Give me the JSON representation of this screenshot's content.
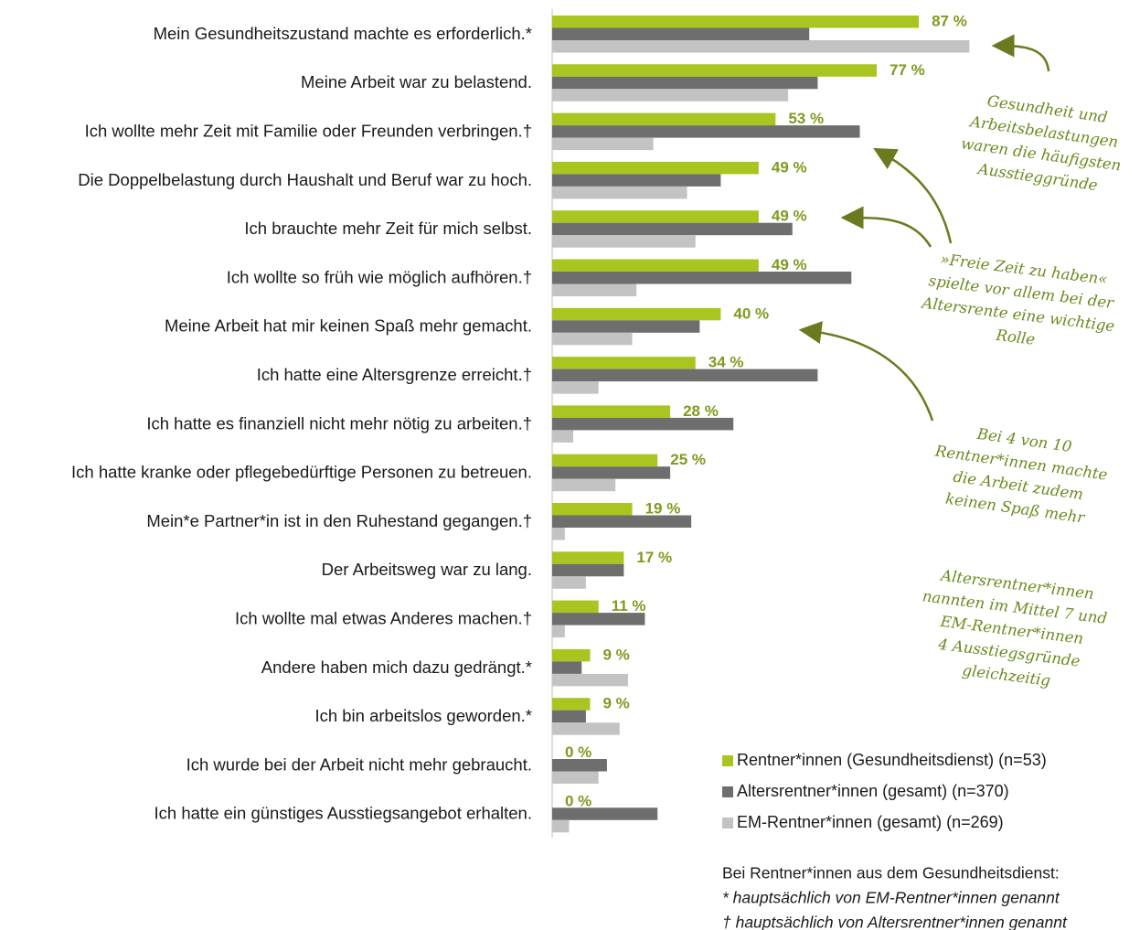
{
  "chart_data": {
    "type": "bar",
    "orientation": "horizontal",
    "categories": [
      "Mein Gesundheitszustand machte es erforderlich.*",
      "Meine Arbeit war zu belastend.",
      "Ich wollte mehr Zeit mit Familie oder Freunden verbringen.†",
      "Die Doppelbelastung durch Haushalt und Beruf war zu hoch.",
      "Ich brauchte mehr Zeit für mich selbst.",
      "Ich wollte so früh wie möglich aufhören.†",
      "Meine Arbeit hat mir keinen Spaß mehr gemacht.",
      "Ich hatte eine Altersgrenze erreicht.†",
      "Ich hatte es finanziell nicht mehr nötig zu arbeiten.†",
      "Ich hatte kranke oder pflegebedürftige Personen zu betreuen.",
      "Mein*e Partner*in ist in den Ruhestand gegangen.†",
      "Der Arbeitsweg war zu lang.",
      "Ich wollte mal etwas Anderes machen.†",
      "Andere haben mich dazu gedrängt.*",
      "Ich bin arbeitslos geworden.*",
      "Ich wurde bei der Arbeit nicht mehr gebraucht.",
      "Ich hatte ein günstiges Ausstiegsangebot erhalten."
    ],
    "series": [
      {
        "name": "Rentner*innen (Gesundheitsdienst) (n=53)",
        "color": "#a8c520",
        "values": [
          87,
          77,
          53,
          49,
          49,
          49,
          40,
          34,
          28,
          25,
          19,
          17,
          11,
          9,
          9,
          0,
          0
        ],
        "value_labels": [
          "87 %",
          "77 %",
          "53 %",
          "49 %",
          "49 %",
          "49 %",
          "40 %",
          "34 %",
          "28 %",
          "25 %",
          "19 %",
          "17 %",
          "11 %",
          "9 %",
          "9 %",
          "0 %",
          "0 %"
        ]
      },
      {
        "name": "Altersrentner*innen (gesamt) (n=370)",
        "color": "#6e6e6e",
        "values": [
          61,
          63,
          73,
          40,
          57,
          71,
          35,
          63,
          43,
          28,
          33,
          17,
          22,
          7,
          8,
          13,
          25
        ]
      },
      {
        "name": "EM-Rentner*innen (gesamt) (n=269)",
        "color": "#c3c3c3",
        "values": [
          99,
          56,
          24,
          32,
          34,
          20,
          19,
          11,
          5,
          15,
          3,
          8,
          3,
          18,
          16,
          11,
          4
        ]
      }
    ],
    "value_label_color": "#7f9a1e",
    "annotations": [
      {
        "lines": [
          "Gesundheit und",
          "Arbeitsbelastungen",
          "waren die häufigsten",
          "Ausstieggründe"
        ]
      },
      {
        "lines": [
          "»Freie Zeit zu haben«",
          "spielte vor allem bei der",
          "Altersrente eine wichtige",
          "Rolle"
        ]
      },
      {
        "lines": [
          "Bei 4 von 10",
          "Rentner*innen machte",
          "die Arbeit zudem",
          "keinen Spaß mehr"
        ]
      },
      {
        "lines": [
          "Altersrentner*innen",
          "nannten im Mittel 7 und",
          "EM-Rentner*innen",
          "4 Ausstiegsgründe",
          "gleichzeitig"
        ]
      }
    ],
    "footnotes": [
      "Bei Rentner*innen aus dem Gesundheitsdienst:",
      "* hauptsächlich von EM-Rentner*innen genannt",
      "† hauptsächlich von Altersrentner*innen genannt"
    ]
  }
}
